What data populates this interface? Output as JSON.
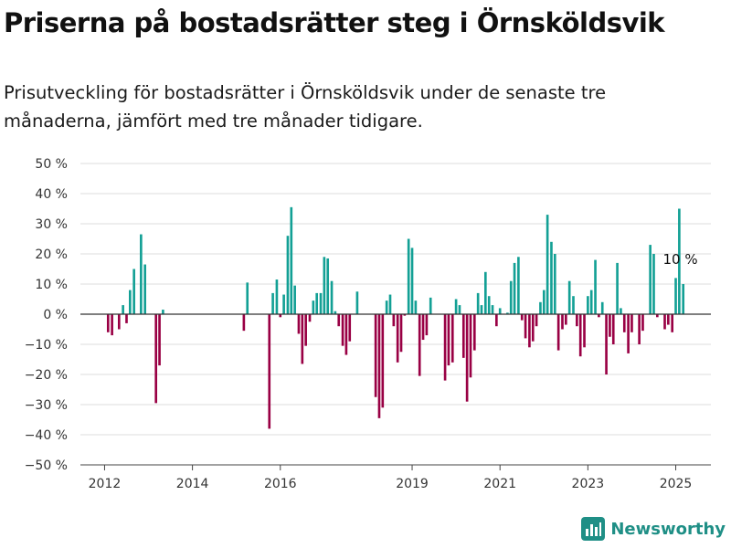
{
  "header": {
    "title": "Priserna på bostadsrätter steg i Örnsköldsvik",
    "subtitle": "Prisutveckling för bostadsrätter i Örnsköldsvik under de senaste tre månaderna, jämfört med tre månader tidigare."
  },
  "brand": {
    "name": "Newsworthy",
    "icon": "newsworthy-logo-icon"
  },
  "colors": {
    "positive": "#13a095",
    "negative": "#990044",
    "grid": "#dddddd",
    "zero_line": "#333333"
  },
  "chart_data": {
    "type": "bar",
    "ylim": [
      -50,
      50
    ],
    "xlim": [
      2011.45,
      2025.8
    ],
    "y_ticks": [
      {
        "value": 50,
        "label": "50 %"
      },
      {
        "value": 40,
        "label": "40 %"
      },
      {
        "value": 30,
        "label": "30 %"
      },
      {
        "value": 20,
        "label": "20 %"
      },
      {
        "value": 10,
        "label": "10 %"
      },
      {
        "value": 0,
        "label": "0 %"
      },
      {
        "value": -10,
        "label": "−10 %"
      },
      {
        "value": -20,
        "label": "−20 %"
      },
      {
        "value": -30,
        "label": "−30 %"
      },
      {
        "value": -40,
        "label": "−40 %"
      },
      {
        "value": -50,
        "label": "−50 %"
      }
    ],
    "x_ticks": [
      {
        "value": 2012,
        "label": "2012"
      },
      {
        "value": 2014,
        "label": "2014"
      },
      {
        "value": 2016,
        "label": "2016"
      },
      {
        "value": 2019,
        "label": "2019"
      },
      {
        "value": 2021,
        "label": "2021"
      },
      {
        "value": 2023,
        "label": "2023"
      },
      {
        "value": 2025,
        "label": "2025"
      }
    ],
    "grid": true,
    "annotation": {
      "x": 2025,
      "y": 10,
      "label": "10 %"
    },
    "points": [
      [
        2012.08,
        -6
      ],
      [
        2012.17,
        -7
      ],
      [
        2012.33,
        -5
      ],
      [
        2012.42,
        3
      ],
      [
        2012.5,
        -3
      ],
      [
        2012.58,
        8
      ],
      [
        2012.67,
        15
      ],
      [
        2012.83,
        26.5
      ],
      [
        2012.92,
        16.5
      ],
      [
        2013.17,
        -29.5
      ],
      [
        2013.25,
        -17
      ],
      [
        2013.33,
        1.5
      ],
      [
        2015.17,
        -5.5
      ],
      [
        2015.25,
        10.5
      ],
      [
        2015.75,
        -38
      ],
      [
        2015.83,
        7
      ],
      [
        2015.92,
        11.5
      ],
      [
        2016.0,
        -1
      ],
      [
        2016.08,
        6.5
      ],
      [
        2016.17,
        26
      ],
      [
        2016.25,
        35.5
      ],
      [
        2016.33,
        9.5
      ],
      [
        2016.42,
        -6.5
      ],
      [
        2016.5,
        -16.5
      ],
      [
        2016.58,
        -10.5
      ],
      [
        2016.67,
        -2.5
      ],
      [
        2016.75,
        4.5
      ],
      [
        2016.83,
        7
      ],
      [
        2016.92,
        7
      ],
      [
        2017.0,
        19
      ],
      [
        2017.08,
        18.5
      ],
      [
        2017.17,
        11
      ],
      [
        2017.25,
        1
      ],
      [
        2017.33,
        -4
      ],
      [
        2017.42,
        -10.5
      ],
      [
        2017.5,
        -13.5
      ],
      [
        2017.58,
        -9
      ],
      [
        2017.75,
        7.5
      ],
      [
        2018.17,
        -27.5
      ],
      [
        2018.25,
        -34.5
      ],
      [
        2018.33,
        -31
      ],
      [
        2018.42,
        4.5
      ],
      [
        2018.5,
        6.5
      ],
      [
        2018.58,
        -4
      ],
      [
        2018.67,
        -16
      ],
      [
        2018.75,
        -12.5
      ],
      [
        2018.83,
        -0.5
      ],
      [
        2018.92,
        25
      ],
      [
        2019.0,
        22
      ],
      [
        2019.08,
        4.5
      ],
      [
        2019.17,
        -20.5
      ],
      [
        2019.25,
        -8.5
      ],
      [
        2019.33,
        -7
      ],
      [
        2019.42,
        5.5
      ],
      [
        2019.75,
        -22
      ],
      [
        2019.83,
        -17
      ],
      [
        2019.92,
        -16
      ],
      [
        2020.0,
        5
      ],
      [
        2020.08,
        3
      ],
      [
        2020.17,
        -14.5
      ],
      [
        2020.25,
        -29
      ],
      [
        2020.33,
        -21
      ],
      [
        2020.42,
        -12
      ],
      [
        2020.5,
        7
      ],
      [
        2020.58,
        3
      ],
      [
        2020.67,
        14
      ],
      [
        2020.75,
        6
      ],
      [
        2020.83,
        3
      ],
      [
        2020.92,
        -4
      ],
      [
        2021.0,
        2
      ],
      [
        2021.17,
        0.5
      ],
      [
        2021.25,
        11
      ],
      [
        2021.33,
        17
      ],
      [
        2021.42,
        19
      ],
      [
        2021.5,
        -2
      ],
      [
        2021.58,
        -8
      ],
      [
        2021.67,
        -11
      ],
      [
        2021.75,
        -9
      ],
      [
        2021.83,
        -4
      ],
      [
        2021.92,
        4
      ],
      [
        2022.0,
        8
      ],
      [
        2022.08,
        33
      ],
      [
        2022.17,
        24
      ],
      [
        2022.25,
        20
      ],
      [
        2022.33,
        -12
      ],
      [
        2022.42,
        -5
      ],
      [
        2022.5,
        -3.5
      ],
      [
        2022.58,
        11
      ],
      [
        2022.67,
        6
      ],
      [
        2022.75,
        -4
      ],
      [
        2022.83,
        -14
      ],
      [
        2022.92,
        -11
      ],
      [
        2023.0,
        6
      ],
      [
        2023.08,
        8
      ],
      [
        2023.17,
        18
      ],
      [
        2023.25,
        -1
      ],
      [
        2023.33,
        4
      ],
      [
        2023.42,
        -20
      ],
      [
        2023.5,
        -7.5
      ],
      [
        2023.58,
        -10
      ],
      [
        2023.67,
        17
      ],
      [
        2023.75,
        2
      ],
      [
        2023.83,
        -6
      ],
      [
        2023.92,
        -13
      ],
      [
        2024.0,
        -6
      ],
      [
        2024.17,
        -10
      ],
      [
        2024.25,
        -5.5
      ],
      [
        2024.42,
        23
      ],
      [
        2024.5,
        20
      ],
      [
        2024.58,
        -1
      ],
      [
        2024.75,
        -5
      ],
      [
        2024.83,
        -3.5
      ],
      [
        2024.92,
        -6
      ],
      [
        2025.0,
        12
      ],
      [
        2025.08,
        35
      ],
      [
        2025.17,
        10
      ]
    ]
  }
}
